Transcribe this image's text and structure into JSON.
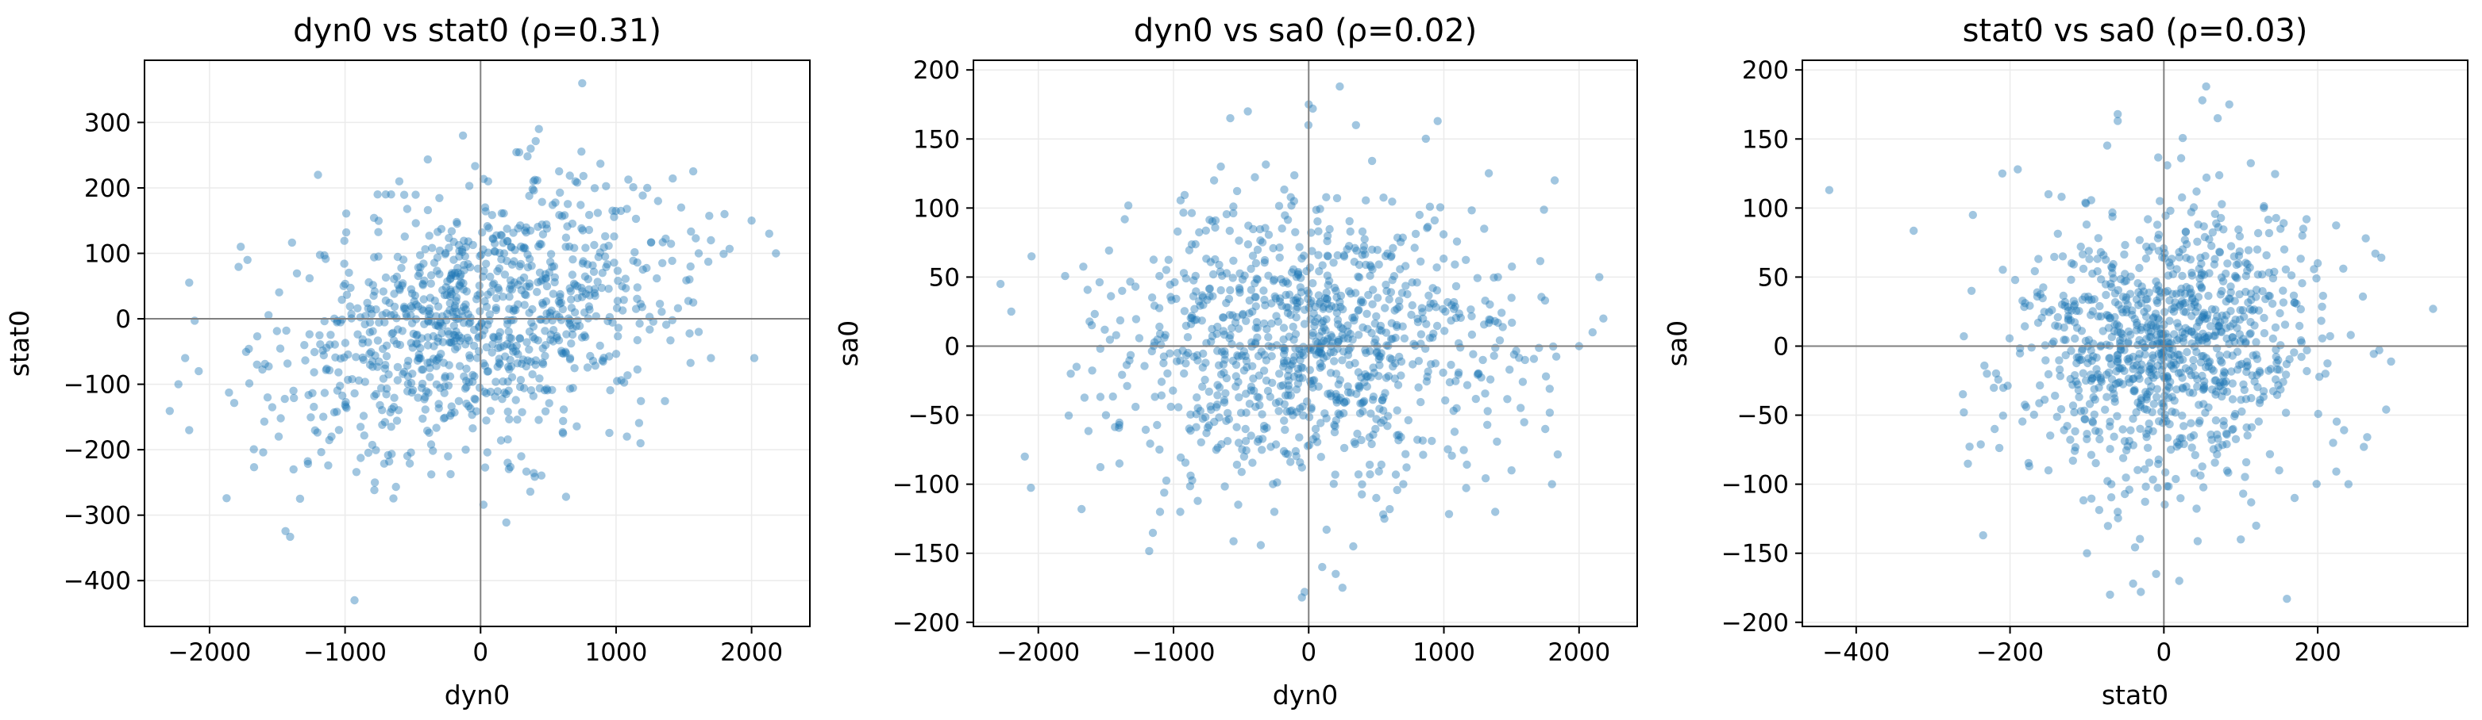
{
  "colors": {
    "point": "#1f77b4",
    "grid": "#ebebeb",
    "zero_line": "#808080",
    "frame": "#000000"
  },
  "chart_data": [
    {
      "type": "scatter",
      "title": "dyn0 vs stat0  (ρ=0.31)",
      "xlabel": "dyn0",
      "ylabel": "stat0",
      "xlim": [
        -2480,
        2430
      ],
      "ylim": [
        -470,
        395
      ],
      "xticks": [
        -2000,
        -1000,
        0,
        1000,
        2000
      ],
      "yticks": [
        -400,
        -300,
        -200,
        -100,
        0,
        100,
        200,
        300
      ],
      "grid": true,
      "correlation": 0.31,
      "n_points": 1000,
      "x_sd": 720,
      "y_sd": 100,
      "points": [
        [
          -2180,
          -60
        ],
        [
          -2230,
          -100
        ],
        [
          -2150,
          -170
        ],
        [
          -2080,
          -80
        ],
        [
          -1770,
          110
        ],
        [
          -1720,
          90
        ],
        [
          -1650,
          -70
        ],
        [
          -1490,
          -180
        ],
        [
          -1380,
          -230
        ],
        [
          -1200,
          220
        ],
        [
          -1100,
          -180
        ],
        [
          -930,
          -430
        ],
        [
          -780,
          -250
        ],
        [
          -760,
          190
        ],
        [
          -700,
          190
        ],
        [
          -660,
          190
        ],
        [
          -600,
          210
        ],
        [
          -240,
          -210
        ],
        [
          -130,
          280
        ],
        [
          -110,
          -200
        ],
        [
          200,
          -220
        ],
        [
          300,
          -210
        ],
        [
          370,
          260
        ],
        [
          430,
          290
        ],
        [
          700,
          210
        ],
        [
          750,
          360
        ],
        [
          1080,
          -180
        ],
        [
          1180,
          -190
        ],
        [
          1230,
          200
        ],
        [
          1310,
          180
        ],
        [
          1480,
          170
        ],
        [
          1610,
          100
        ],
        [
          1700,
          120
        ],
        [
          1800,
          160
        ],
        [
          2000,
          150
        ],
        [
          2130,
          130
        ],
        [
          2180,
          100
        ],
        [
          2020,
          -60
        ],
        [
          1700,
          -60
        ],
        [
          1610,
          -20
        ]
      ]
    },
    {
      "type": "scatter",
      "title": "dyn0 vs sa0  (ρ=0.02)",
      "xlabel": "dyn0",
      "ylabel": "sa0",
      "xlim": [
        -2480,
        2430
      ],
      "ylim": [
        -203,
        207
      ],
      "xticks": [
        -2000,
        -1000,
        0,
        1000,
        2000
      ],
      "yticks": [
        -200,
        -150,
        -100,
        -50,
        0,
        50,
        100,
        150,
        200
      ],
      "grid": true,
      "correlation": 0.02,
      "n_points": 1000,
      "x_sd": 720,
      "y_sd": 50,
      "points": [
        [
          -2280,
          45
        ],
        [
          -2200,
          25
        ],
        [
          -2050,
          65
        ],
        [
          -2100,
          -80
        ],
        [
          -1680,
          -118
        ],
        [
          -1400,
          -85
        ],
        [
          -1100,
          -120
        ],
        [
          -950,
          -120
        ],
        [
          -700,
          120
        ],
        [
          -650,
          130
        ],
        [
          -580,
          165
        ],
        [
          -450,
          170
        ],
        [
          -50,
          -182
        ],
        [
          -30,
          -178
        ],
        [
          0,
          175
        ],
        [
          30,
          172
        ],
        [
          100,
          -160
        ],
        [
          200,
          -165
        ],
        [
          250,
          -175
        ],
        [
          330,
          -145
        ],
        [
          230,
          188
        ],
        [
          350,
          160
        ],
        [
          500,
          -110
        ],
        [
          560,
          -125
        ],
        [
          700,
          -100
        ],
        [
          820,
          95
        ],
        [
          1380,
          -120
        ],
        [
          1500,
          -90
        ],
        [
          1750,
          -60
        ],
        [
          1800,
          -100
        ],
        [
          1820,
          120
        ],
        [
          2000,
          0
        ],
        [
          2100,
          10
        ],
        [
          2150,
          50
        ],
        [
          2180,
          20
        ],
        [
          1400,
          50
        ],
        [
          1600,
          -10
        ],
        [
          -1380,
          40
        ],
        [
          -1500,
          -50
        ],
        [
          -1760,
          -20
        ]
      ]
    },
    {
      "type": "scatter",
      "title": "stat0 vs sa0  (ρ=0.03)",
      "xlabel": "stat0",
      "ylabel": "sa0",
      "xlim": [
        -470,
        395
      ],
      "ylim": [
        -203,
        207
      ],
      "xticks": [
        -400,
        -200,
        0,
        200
      ],
      "yticks": [
        -200,
        -150,
        -100,
        -50,
        0,
        50,
        100,
        150,
        200
      ],
      "grid": true,
      "correlation": 0.03,
      "n_points": 1000,
      "x_sd": 100,
      "y_sd": 50,
      "points": [
        [
          -435,
          113
        ],
        [
          -260,
          -48
        ],
        [
          -235,
          -137
        ],
        [
          -210,
          125
        ],
        [
          -190,
          128
        ],
        [
          -150,
          110
        ],
        [
          -60,
          168
        ],
        [
          -60,
          163
        ],
        [
          -70,
          -180
        ],
        [
          -40,
          -172
        ],
        [
          -30,
          -178
        ],
        [
          -10,
          -165
        ],
        [
          20,
          -170
        ],
        [
          50,
          178
        ],
        [
          55,
          188
        ],
        [
          70,
          165
        ],
        [
          85,
          175
        ],
        [
          100,
          -140
        ],
        [
          160,
          -183
        ],
        [
          170,
          -110
        ],
        [
          200,
          60
        ],
        [
          210,
          -20
        ],
        [
          220,
          -70
        ],
        [
          240,
          -100
        ],
        [
          260,
          -73
        ],
        [
          280,
          -3
        ],
        [
          275,
          67
        ],
        [
          350,
          27
        ],
        [
          -250,
          40
        ],
        [
          -230,
          -20
        ],
        [
          -150,
          -90
        ],
        [
          -120,
          60
        ],
        [
          120,
          -130
        ],
        [
          150,
          -90
        ],
        [
          -220,
          -60
        ],
        [
          130,
          100
        ],
        [
          -100,
          -150
        ],
        [
          90,
          -60
        ],
        [
          -60,
          -120
        ],
        [
          180,
          80
        ]
      ]
    }
  ]
}
